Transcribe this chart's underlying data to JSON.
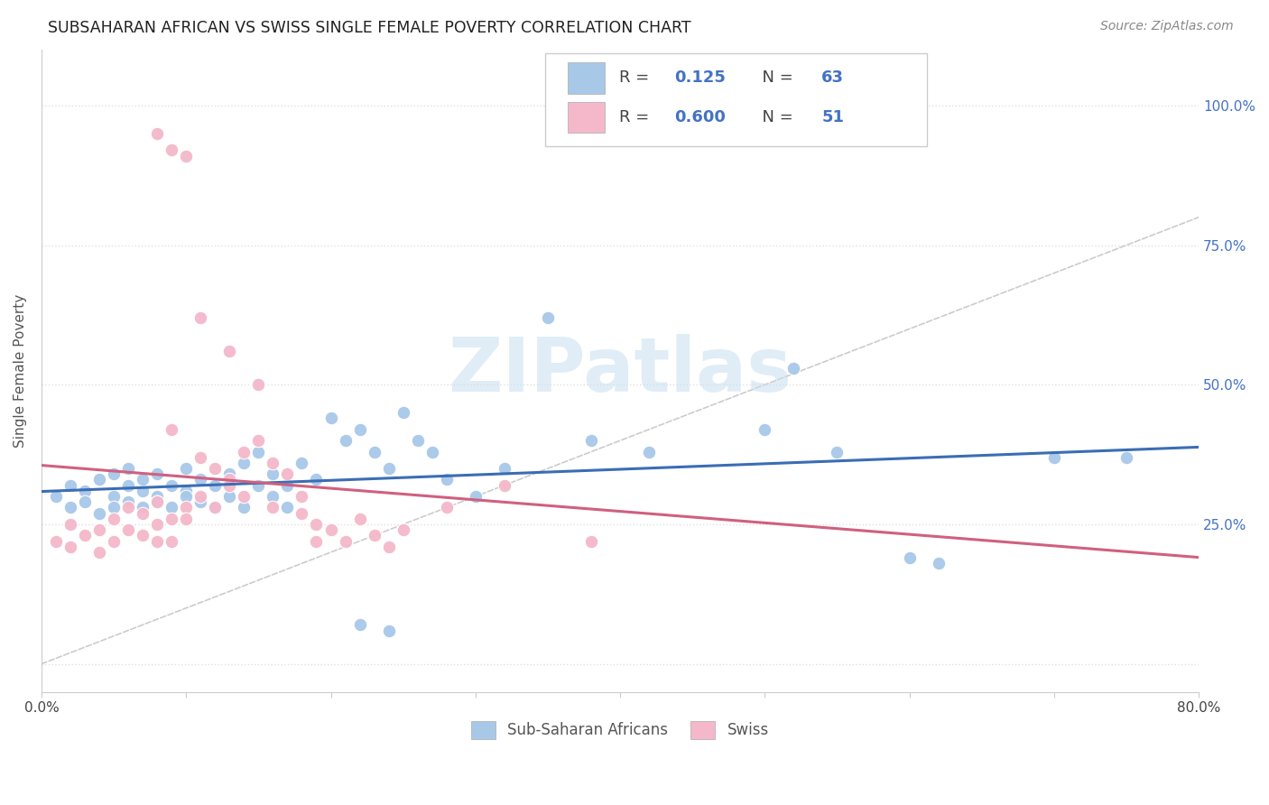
{
  "title": "SUBSAHARAN AFRICAN VS SWISS SINGLE FEMALE POVERTY CORRELATION CHART",
  "source": "Source: ZipAtlas.com",
  "ylabel": "Single Female Poverty",
  "xlim": [
    0.0,
    0.8
  ],
  "ylim": [
    -0.05,
    1.1
  ],
  "xtick_vals": [
    0.0,
    0.1,
    0.2,
    0.3,
    0.4,
    0.5,
    0.6,
    0.7,
    0.8
  ],
  "xtick_labels": [
    "0.0%",
    "",
    "",
    "",
    "",
    "",
    "",
    "",
    "80.0%"
  ],
  "ytick_vals": [
    0.0,
    0.25,
    0.5,
    0.75,
    1.0
  ],
  "ytick_labels_right": [
    "",
    "25.0%",
    "50.0%",
    "75.0%",
    "100.0%"
  ],
  "legend_R_blue": "0.125",
  "legend_N_blue": "63",
  "legend_R_pink": "0.600",
  "legend_N_pink": "51",
  "blue_fill_color": "#a8c8e8",
  "pink_fill_color": "#f4b8ca",
  "blue_line_color": "#3a6db5",
  "pink_line_color": "#d06080",
  "diagonal_color": "#cccccc",
  "watermark_text": "ZIPatlas",
  "watermark_color": "#c8dff0",
  "background_color": "#ffffff",
  "grid_color": "#e0e0e0",
  "blue_x": [
    0.01,
    0.02,
    0.02,
    0.03,
    0.03,
    0.04,
    0.04,
    0.05,
    0.05,
    0.05,
    0.06,
    0.06,
    0.06,
    0.07,
    0.07,
    0.07,
    0.08,
    0.08,
    0.08,
    0.09,
    0.09,
    0.1,
    0.1,
    0.1,
    0.11,
    0.11,
    0.12,
    0.12,
    0.13,
    0.13,
    0.14,
    0.14,
    0.15,
    0.15,
    0.16,
    0.16,
    0.17,
    0.17,
    0.18,
    0.19,
    0.2,
    0.21,
    0.22,
    0.23,
    0.24,
    0.25,
    0.26,
    0.27,
    0.28,
    0.3,
    0.32,
    0.35,
    0.38,
    0.42,
    0.5,
    0.52,
    0.55,
    0.6,
    0.62,
    0.7,
    0.75,
    0.22,
    0.24
  ],
  "blue_y": [
    0.3,
    0.32,
    0.28,
    0.31,
    0.29,
    0.33,
    0.27,
    0.3,
    0.34,
    0.28,
    0.32,
    0.29,
    0.35,
    0.31,
    0.28,
    0.33,
    0.3,
    0.34,
    0.29,
    0.32,
    0.28,
    0.31,
    0.35,
    0.3,
    0.33,
    0.29,
    0.32,
    0.28,
    0.34,
    0.3,
    0.36,
    0.28,
    0.32,
    0.38,
    0.3,
    0.34,
    0.28,
    0.32,
    0.36,
    0.33,
    0.44,
    0.4,
    0.42,
    0.38,
    0.35,
    0.45,
    0.4,
    0.38,
    0.33,
    0.3,
    0.35,
    0.62,
    0.4,
    0.38,
    0.42,
    0.53,
    0.38,
    0.19,
    0.18,
    0.37,
    0.37,
    0.07,
    0.06
  ],
  "pink_x": [
    0.01,
    0.02,
    0.02,
    0.03,
    0.04,
    0.04,
    0.05,
    0.05,
    0.06,
    0.06,
    0.07,
    0.07,
    0.08,
    0.08,
    0.08,
    0.09,
    0.09,
    0.09,
    0.1,
    0.1,
    0.11,
    0.11,
    0.12,
    0.12,
    0.13,
    0.13,
    0.14,
    0.14,
    0.15,
    0.16,
    0.16,
    0.17,
    0.18,
    0.18,
    0.19,
    0.19,
    0.2,
    0.21,
    0.22,
    0.23,
    0.24,
    0.08,
    0.09,
    0.1,
    0.11,
    0.13,
    0.15,
    0.25,
    0.28,
    0.32,
    0.38
  ],
  "pink_y": [
    0.22,
    0.21,
    0.25,
    0.23,
    0.24,
    0.2,
    0.26,
    0.22,
    0.28,
    0.24,
    0.27,
    0.23,
    0.25,
    0.29,
    0.22,
    0.26,
    0.22,
    0.42,
    0.28,
    0.26,
    0.3,
    0.37,
    0.35,
    0.28,
    0.33,
    0.32,
    0.38,
    0.3,
    0.4,
    0.36,
    0.28,
    0.34,
    0.3,
    0.27,
    0.25,
    0.22,
    0.24,
    0.22,
    0.26,
    0.23,
    0.21,
    0.95,
    0.92,
    0.91,
    0.62,
    0.56,
    0.5,
    0.24,
    0.28,
    0.32,
    0.22
  ]
}
